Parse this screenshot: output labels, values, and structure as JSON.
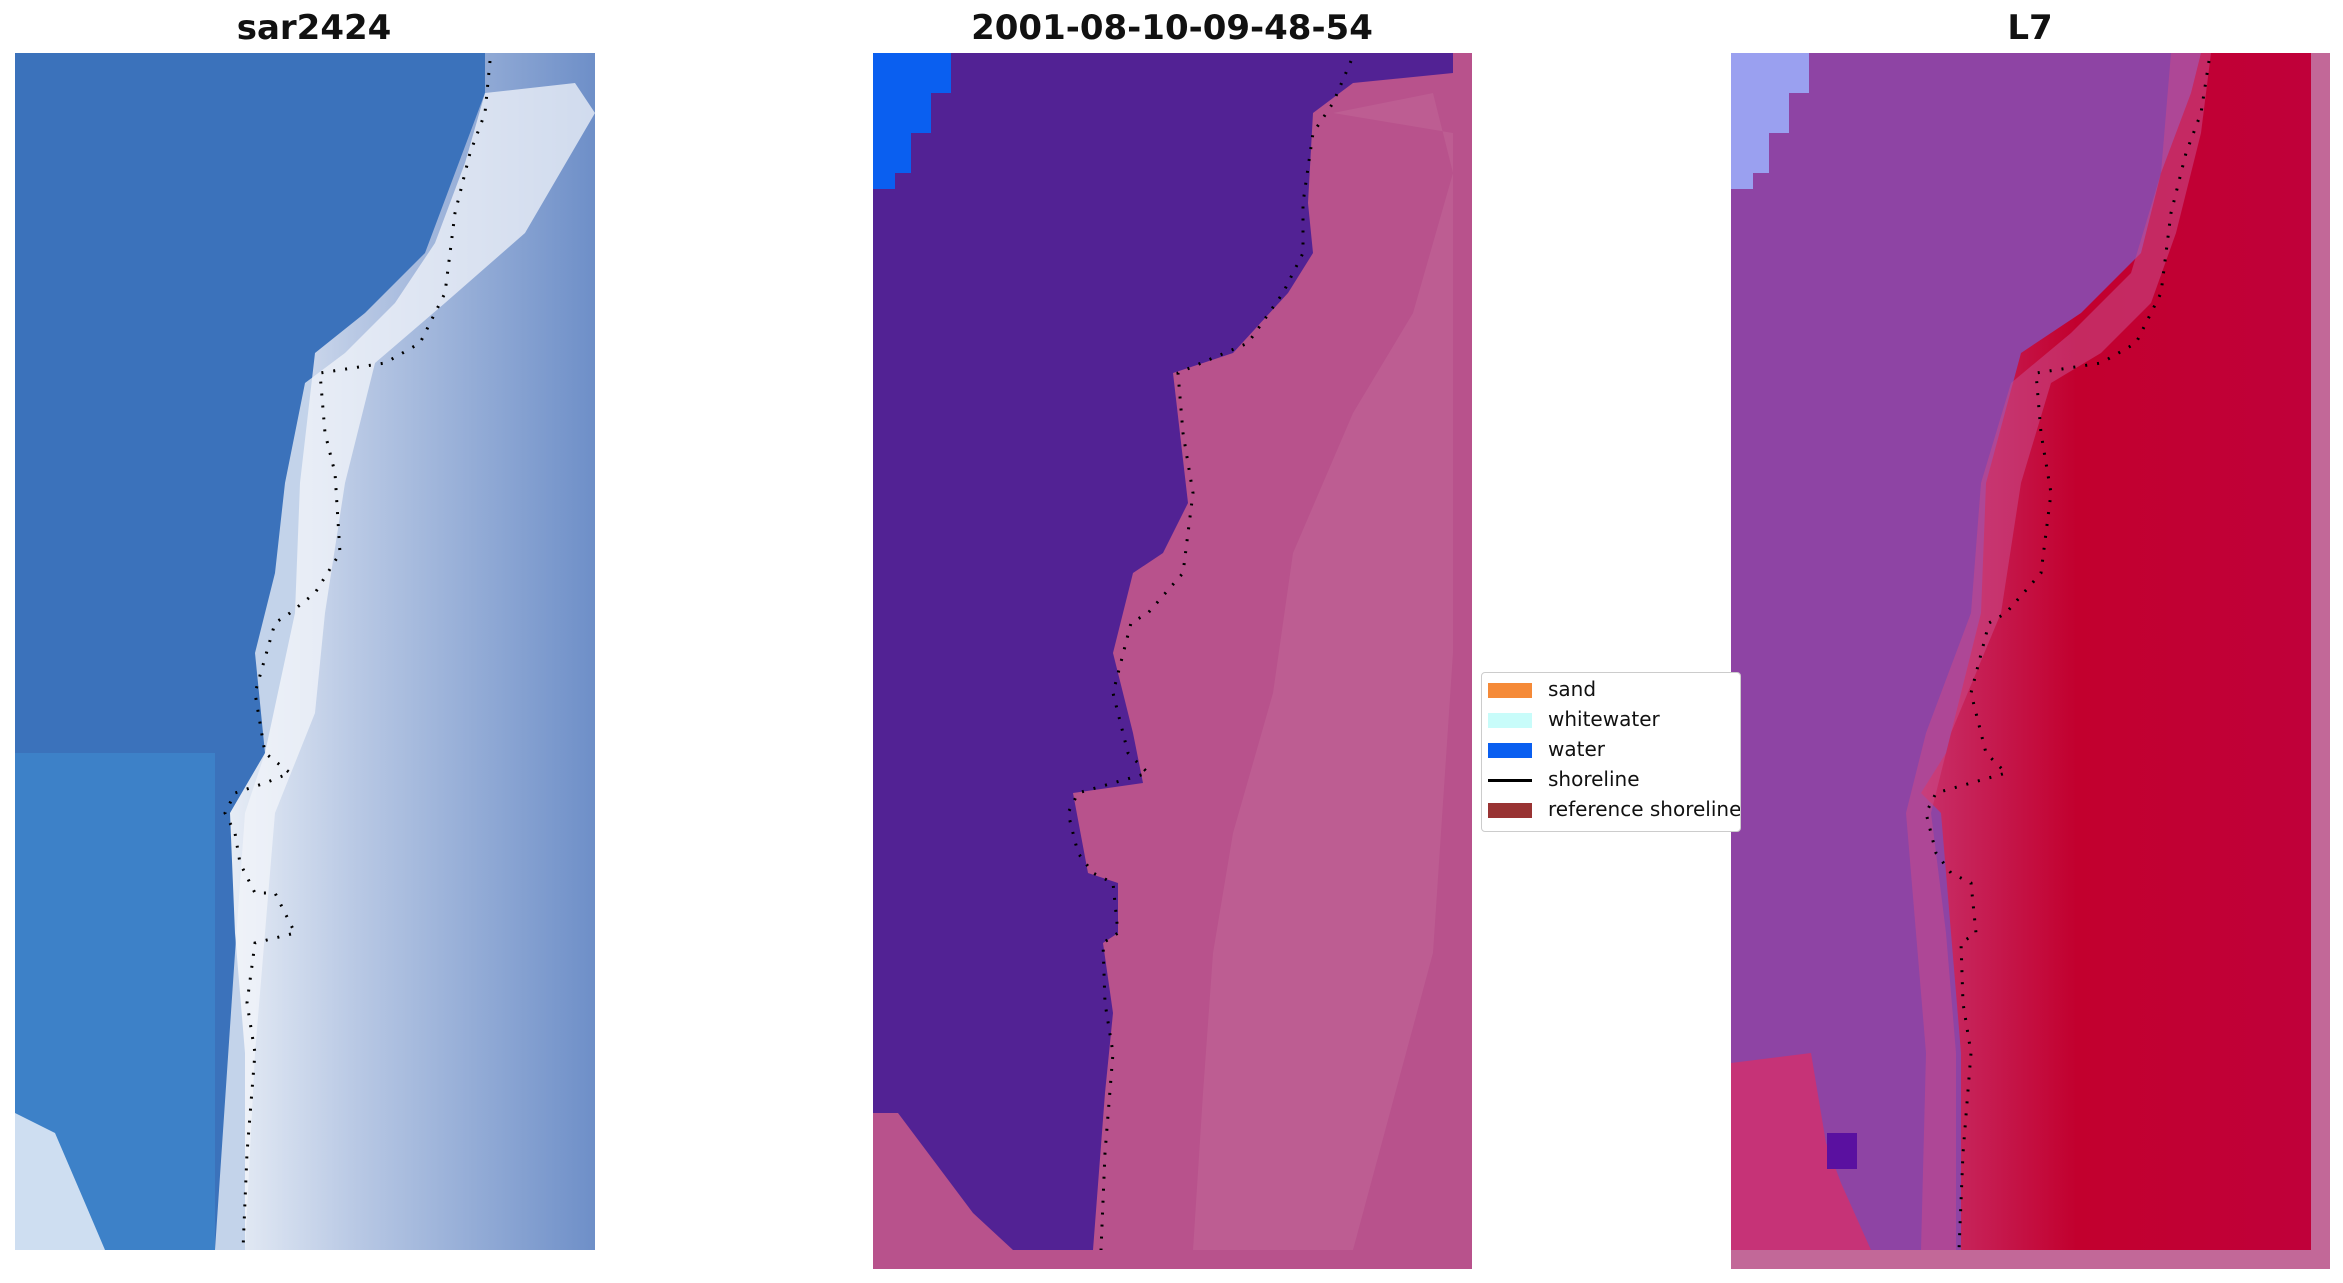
{
  "panels": [
    {
      "title": "sar2424"
    },
    {
      "title": "2001-08-10-09-48-54"
    },
    {
      "title": "L7"
    }
  ],
  "legend": {
    "items": [
      {
        "label": "sand",
        "kind": "patch",
        "color": "#f58a38"
      },
      {
        "label": "whitewater",
        "kind": "patch",
        "color": "#c8fcfa"
      },
      {
        "label": "water",
        "kind": "patch",
        "color": "#0a5ff0"
      },
      {
        "label": "shoreline",
        "kind": "line",
        "color": "#000000"
      },
      {
        "label": "reference shoreline",
        "kind": "patch",
        "color": "#993333"
      }
    ]
  },
  "colors": {
    "rgb_water": "#3a74bd",
    "rgb_surf": "#e6ecf5",
    "rgb_land": "#7a96c8",
    "class_water_area": "#522294",
    "class_land_area": "#b8528c",
    "class_water_patch": "#0a5ff0",
    "mndwi_water": "#8e44a4",
    "mndwi_land": "#c2002e",
    "mndwi_corner": "#9aa0f0"
  }
}
